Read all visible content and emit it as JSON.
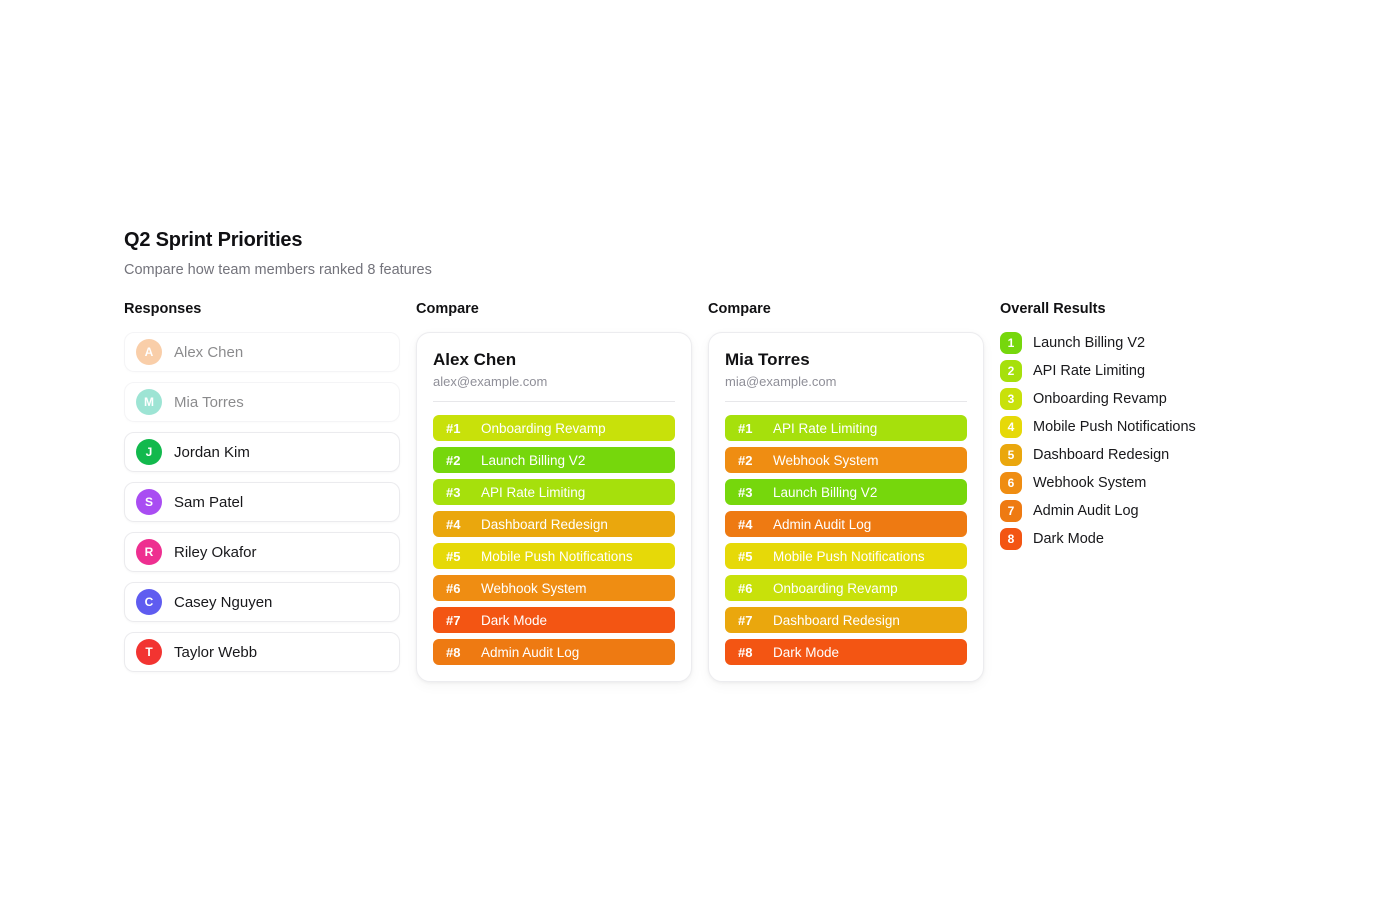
{
  "page": {
    "title": "Q2 Sprint Priorities",
    "subtitle": "Compare how team members ranked 8 features"
  },
  "sections": {
    "responses_label": "Responses",
    "compare_label_1": "Compare",
    "compare_label_2": "Compare",
    "overall_label": "Overall Results"
  },
  "feature_colors": {
    "launch_billing_v2": "#76d70c",
    "api_rate_limiting": "#a6e00c",
    "onboarding_revamp": "#c8e10a",
    "mobile_push_notifications": "#e6d908",
    "dashboard_redesign": "#eaa70d",
    "webhook_system": "#ef8d12",
    "admin_audit_log": "#ee7a12",
    "dark_mode": "#f35513"
  },
  "responses": {
    "members": [
      {
        "name": "Alex Chen",
        "initial": "A",
        "color": "#f59e56",
        "selected": true
      },
      {
        "name": "Mia Torres",
        "initial": "M",
        "color": "#3ecbaa",
        "selected": true
      },
      {
        "name": "Jordan Kim",
        "initial": "J",
        "color": "#12b94d",
        "selected": false
      },
      {
        "name": "Sam Patel",
        "initial": "S",
        "color": "#a94df2",
        "selected": false
      },
      {
        "name": "Riley Okafor",
        "initial": "R",
        "color": "#ee2f90",
        "selected": false
      },
      {
        "name": "Casey Nguyen",
        "initial": "C",
        "color": "#5f5cf0",
        "selected": false
      },
      {
        "name": "Taylor Webb",
        "initial": "T",
        "color": "#f23431",
        "selected": false
      }
    ]
  },
  "compare_panels": [
    {
      "name": "Alex Chen",
      "email": "alex@example.com",
      "rankings": [
        {
          "rank_label": "#1",
          "feature": "Onboarding Revamp",
          "color": "#c8e10a"
        },
        {
          "rank_label": "#2",
          "feature": "Launch Billing V2",
          "color": "#76d70c"
        },
        {
          "rank_label": "#3",
          "feature": "API Rate Limiting",
          "color": "#a6e00c"
        },
        {
          "rank_label": "#4",
          "feature": "Dashboard Redesign",
          "color": "#eaa70d"
        },
        {
          "rank_label": "#5",
          "feature": "Mobile Push Notifications",
          "color": "#e6d908"
        },
        {
          "rank_label": "#6",
          "feature": "Webhook System",
          "color": "#ef8d12"
        },
        {
          "rank_label": "#7",
          "feature": "Dark Mode",
          "color": "#f35513"
        },
        {
          "rank_label": "#8",
          "feature": "Admin Audit Log",
          "color": "#ee7a12"
        }
      ]
    },
    {
      "name": "Mia Torres",
      "email": "mia@example.com",
      "rankings": [
        {
          "rank_label": "#1",
          "feature": "API Rate Limiting",
          "color": "#a6e00c"
        },
        {
          "rank_label": "#2",
          "feature": "Webhook System",
          "color": "#ef8d12"
        },
        {
          "rank_label": "#3",
          "feature": "Launch Billing V2",
          "color": "#76d70c"
        },
        {
          "rank_label": "#4",
          "feature": "Admin Audit Log",
          "color": "#ee7a12"
        },
        {
          "rank_label": "#5",
          "feature": "Mobile Push Notifications",
          "color": "#e6d908"
        },
        {
          "rank_label": "#6",
          "feature": "Onboarding Revamp",
          "color": "#c8e10a"
        },
        {
          "rank_label": "#7",
          "feature": "Dashboard Redesign",
          "color": "#eaa70d"
        },
        {
          "rank_label": "#8",
          "feature": "Dark Mode",
          "color": "#f35513"
        }
      ]
    }
  ],
  "overall": {
    "items": [
      {
        "rank": "1",
        "feature": "Launch Billing V2",
        "color": "#76d70c"
      },
      {
        "rank": "2",
        "feature": "API Rate Limiting",
        "color": "#a6e00c"
      },
      {
        "rank": "3",
        "feature": "Onboarding Revamp",
        "color": "#c8e10a"
      },
      {
        "rank": "4",
        "feature": "Mobile Push Notifications",
        "color": "#e6d908"
      },
      {
        "rank": "5",
        "feature": "Dashboard Redesign",
        "color": "#eaa70d"
      },
      {
        "rank": "6",
        "feature": "Webhook System",
        "color": "#ef8d12"
      },
      {
        "rank": "7",
        "feature": "Admin Audit Log",
        "color": "#ee7a12"
      },
      {
        "rank": "8",
        "feature": "Dark Mode",
        "color": "#f35513"
      }
    ]
  }
}
